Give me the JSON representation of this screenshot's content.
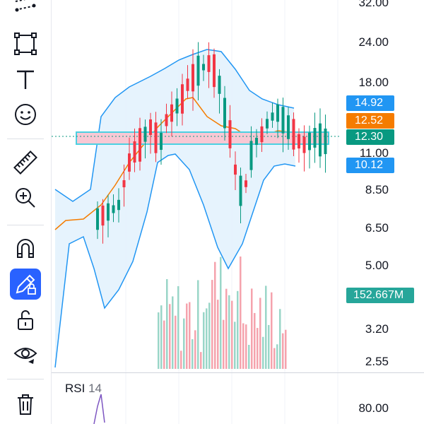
{
  "toolbar": {
    "tools": [
      {
        "name": "trend-line-tool-icon",
        "active": false
      },
      {
        "name": "rectangle-tool-icon",
        "active": false
      },
      {
        "name": "text-tool-icon",
        "active": false
      },
      {
        "name": "emoji-tool-icon",
        "active": false
      },
      {
        "name": "ruler-measure-icon",
        "active": false
      },
      {
        "name": "zoom-in-icon",
        "active": false
      },
      {
        "name": "magnet-icon",
        "active": false
      },
      {
        "name": "lock-drawing-icon",
        "active": true
      },
      {
        "name": "unlock-icon",
        "active": false
      },
      {
        "name": "eye-visibility-icon",
        "active": false
      },
      {
        "name": "trash-icon",
        "active": false
      }
    ]
  },
  "price_axis": {
    "labels": [
      "32.00",
      "24.00",
      "18.00",
      "11.00",
      "8.50",
      "6.50",
      "5.00",
      "3.20",
      "2.55"
    ],
    "log_scale": true
  },
  "price_tags": {
    "upper_band": {
      "label": "14.92",
      "color": "#2196f3"
    },
    "ma": {
      "label": "12.52",
      "color": "#f57c00"
    },
    "last": {
      "label": "12.30",
      "color": "#089981"
    },
    "lower_band": {
      "label": "10.12",
      "color": "#2196f3"
    },
    "volume": {
      "label": "152.667M",
      "color": "#26a69a"
    }
  },
  "rsi": {
    "name": "RSI",
    "length": "14",
    "axis_label": "80.00",
    "line_color": "#7e57c2"
  },
  "colors": {
    "up": "#089981",
    "down": "#f23645",
    "band": "#2196f3",
    "band_fill": "#e3f2fd",
    "ma": "#f57c00",
    "highlight_box": "#4dd0e1",
    "highlight_fill": "#f8c8d4"
  }
}
